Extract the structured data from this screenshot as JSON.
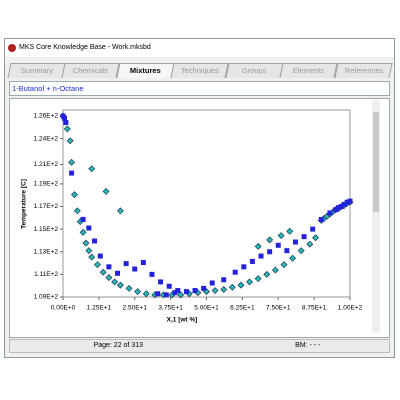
{
  "window": {
    "title": "MKS Core Knowledge Base - Work.mksbd"
  },
  "tabs": [
    "Summary",
    "Chemicals",
    "Mixtures",
    "Techniques",
    "Groups",
    "Elements",
    "References"
  ],
  "active_tab": 2,
  "selection": "1-Butanol + n-Octane",
  "status": {
    "page": "Page: 22 of 313",
    "bm": "BM: - - -"
  },
  "chart_data": {
    "type": "scatter",
    "xlabel": "X,1 [wt %]",
    "ylabel": "Temperature [C]",
    "xlim": [
      0,
      100
    ],
    "xticks": [
      {
        "value": 0,
        "label": "0.00E+0"
      },
      {
        "value": 12.5,
        "label": "1.25E+1"
      },
      {
        "value": 25,
        "label": "2.50E+1"
      },
      {
        "value": 37.5,
        "label": "3.75E+1"
      },
      {
        "value": 50,
        "label": "5.00E+1"
      },
      {
        "value": 62.5,
        "label": "6.25E+1"
      },
      {
        "value": 75,
        "label": "7.50E+1"
      },
      {
        "value": 87.5,
        "label": "8.75E+1"
      },
      {
        "value": 100,
        "label": "1.00E+2"
      }
    ],
    "ylim": [
      109,
      125.8
    ],
    "yticks": [
      {
        "value": 109,
        "label": "1.09E+2"
      },
      {
        "value": 111.1,
        "label": "1.11E+2"
      },
      {
        "value": 113.2,
        "label": "1.13E+2"
      },
      {
        "value": 115.3,
        "label": "1.15E+2"
      },
      {
        "value": 117.4,
        "label": "1.17E+2"
      },
      {
        "value": 119.5,
        "label": "1.19E+2"
      },
      {
        "value": 121.3,
        "label": "1.21E+2"
      },
      {
        "value": 123.7,
        "label": "1.24E+2"
      },
      {
        "value": 125.8,
        "label": "1.26E+2"
      }
    ],
    "series": [
      {
        "color": "#2ab7b2",
        "marker": "diamond",
        "x": [
          0,
          1.5,
          2.5,
          3,
          4,
          5,
          6,
          7,
          8,
          9,
          10,
          12,
          14,
          16,
          18,
          20,
          23,
          26,
          29,
          32,
          35,
          38,
          41,
          44,
          47,
          50,
          53,
          56,
          59,
          62,
          65,
          68,
          71,
          74,
          77,
          80,
          83,
          86,
          88,
          90,
          91,
          92,
          93,
          94,
          95,
          96,
          97,
          98,
          99,
          100,
          10,
          15,
          20,
          68,
          72,
          76,
          79
        ],
        "values": [
          125.8,
          124.6,
          123.5,
          121.5,
          118.5,
          117,
          116,
          115,
          114,
          113.3,
          112.7,
          112,
          111.3,
          110.8,
          110.4,
          110.1,
          109.8,
          109.5,
          109.3,
          109.2,
          109.2,
          109.2,
          109.2,
          109.3,
          109.4,
          109.5,
          109.6,
          109.7,
          109.9,
          110.1,
          110.4,
          110.7,
          111.1,
          111.5,
          112,
          112.6,
          113.3,
          113.9,
          114.5,
          116.1,
          116.3,
          116.5,
          116.7,
          116.9,
          117.1,
          117.2,
          117.4,
          117.5,
          117.7,
          117.8,
          120.9,
          118.8,
          117,
          113.7,
          114.3,
          114.7,
          115.1
        ]
      },
      {
        "color": "#2222dd",
        "marker": "square",
        "x": [
          0,
          0.5,
          1,
          3,
          7,
          9,
          11,
          13,
          16,
          19,
          22,
          25,
          28,
          31,
          33,
          34,
          36,
          37,
          39,
          40,
          43,
          46,
          49,
          52,
          56,
          60,
          63,
          66,
          69,
          72,
          75,
          78,
          81,
          84,
          87,
          90,
          93,
          95,
          96,
          97,
          98,
          99,
          100
        ],
        "values": [
          125.8,
          125.6,
          125.2,
          120.5,
          116.2,
          115.4,
          114.2,
          112.8,
          111.8,
          111.2,
          112.1,
          111.6,
          112.2,
          111.1,
          109.3,
          110.4,
          109.2,
          110,
          109.4,
          109.6,
          109.5,
          109.6,
          109.8,
          110.3,
          110.6,
          111.3,
          111.8,
          112.3,
          112.8,
          113.2,
          113.8,
          113.3,
          114.1,
          114.6,
          115.3,
          116.2,
          116.8,
          117.1,
          117.3,
          117.4,
          117.6,
          117.8,
          117.9
        ]
      }
    ]
  }
}
